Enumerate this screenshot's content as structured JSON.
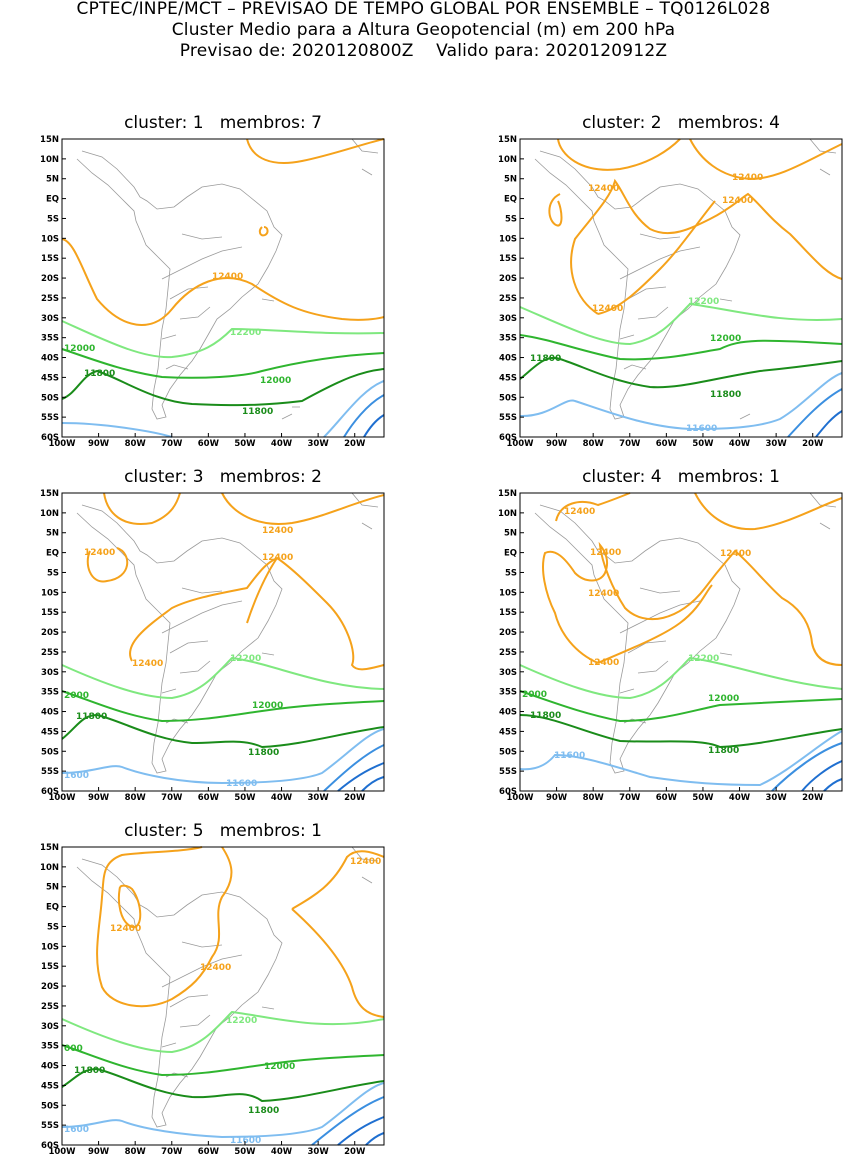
{
  "header": {
    "line1": "CPTEC/INPE/MCT – PREVISAO DE TEMPO GLOBAL POR ENSEMBLE – TQ0126L028",
    "line2": "Cluster Medio para a Altura Geopotencial (m) em 200 hPa",
    "line3": "Previsao de: 2020120800Z    Valido para: 2020120912Z"
  },
  "axes": {
    "lat_labels": [
      "15N",
      "10N",
      "5N",
      "EQ",
      "5S",
      "10S",
      "15S",
      "20S",
      "25S",
      "30S",
      "35S",
      "40S",
      "45S",
      "50S",
      "55S",
      "60S"
    ],
    "lon_labels": [
      "100W",
      "90W",
      "80W",
      "70W",
      "60W",
      "50W",
      "40W",
      "30W",
      "20W"
    ]
  },
  "colors": {
    "c12400": "#f5a21b",
    "c12200": "#7fe87f",
    "c12000": "#2fb52f",
    "c11800": "#1a8c1a",
    "c11600": "#7fbdf0",
    "c11400": "#3b8fe0",
    "c11200": "#1f6fd0",
    "coast": "#9a9a9a"
  },
  "panels": [
    {
      "id": 1,
      "title": "cluster: 1   membros: 7",
      "labels": {
        "a": "12400",
        "b": "12200",
        "c": "12000",
        "d": "12000",
        "e": "11800",
        "f": "11800",
        "g": ""
      }
    },
    {
      "id": 2,
      "title": "cluster: 2   membros: 4",
      "labels": {
        "a": "12400",
        "b": "12400",
        "c": "12400",
        "d": "12400",
        "e": "12200",
        "f": "12000",
        "g": "11800",
        "h": "11800",
        "i": "11600"
      }
    },
    {
      "id": 3,
      "title": "cluster: 3   membros: 2",
      "labels": {
        "a": "12400",
        "b": "12400",
        "c": "12400",
        "d": "12400",
        "e": "12200",
        "f": "2000",
        "g": "12000",
        "h": "11800",
        "i": "11800",
        "j": "1600",
        "k": "11600"
      }
    },
    {
      "id": 4,
      "title": "cluster: 4   membros: 1",
      "labels": {
        "a": "12400",
        "b": "12400",
        "c": "12400",
        "d": "12400",
        "e": "12400",
        "f": "12200",
        "g": "2000",
        "h": "12000",
        "i": "11800",
        "j": "11800",
        "k": "11600"
      }
    },
    {
      "id": 5,
      "title": "cluster: 5   membros: 1",
      "labels": {
        "a": "12400",
        "b": "12400",
        "c": "12400",
        "d": "12200",
        "e": "000",
        "f": "12000",
        "g": "11800",
        "h": "11800",
        "i": "1600",
        "j": "11600"
      }
    }
  ]
}
